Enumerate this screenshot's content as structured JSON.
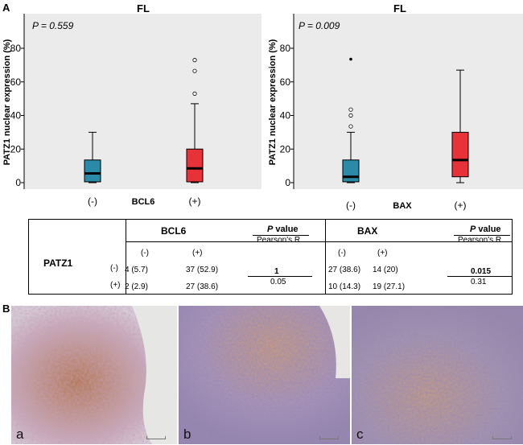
{
  "panel_a_label": "A",
  "panel_b_label": "B",
  "chart_data": [
    {
      "type": "boxplot",
      "title": "FL",
      "annotation": "P = 0.559",
      "ylabel": "PATZ1 nuclear expression (%)",
      "xlabel": "BCL6",
      "categories": [
        "(-)",
        "(+)"
      ],
      "yticks": [
        0,
        20,
        40,
        60,
        80
      ],
      "ylim": [
        0,
        84
      ],
      "boxes": [
        {
          "name": "(-)",
          "color": "#2a8aa8",
          "whisker_low": 0,
          "q1": 0.5,
          "median": 5.5,
          "q3": 13.5,
          "whisker_high": 30,
          "outliers": [],
          "outlier_style": "circle"
        },
        {
          "name": "(+)",
          "color": "#e8323a",
          "whisker_low": 0,
          "q1": 0.5,
          "median": 8.5,
          "q3": 20,
          "whisker_high": 47,
          "outliers": [
            53,
            66.5,
            73
          ],
          "outlier_style": "circle"
        }
      ]
    },
    {
      "type": "boxplot",
      "title": "FL",
      "annotation": "P = 0.009",
      "ylabel": "PATZ1 nuclear expression (%)",
      "xlabel": "BAX",
      "categories": [
        "(-)",
        "(+)"
      ],
      "yticks": [
        0,
        20,
        40,
        60,
        80
      ],
      "ylim": [
        0,
        84
      ],
      "boxes": [
        {
          "name": "(-)",
          "color": "#2a8aa8",
          "whisker_low": 0,
          "q1": 0.5,
          "median": 3.5,
          "q3": 13.5,
          "whisker_high": 30,
          "outliers": [
            33.5,
            40,
            43.5
          ],
          "outlier_style": "circle",
          "extremes": [
            73.5
          ]
        },
        {
          "name": "(+)",
          "color": "#e8323a",
          "whisker_low": 0,
          "q1": 3.5,
          "median": 13.5,
          "q3": 30,
          "whisker_high": 67,
          "outliers": [],
          "outlier_style": "circle"
        }
      ]
    }
  ],
  "table": {
    "row_header": "PATZ1",
    "row_neg": "(-)",
    "row_pos": "(+)",
    "bcl6": {
      "title": "BCL6",
      "neg": "(-)",
      "pos": "(+)",
      "pvalue_label_p": "P",
      "pvalue_label_rest": " value",
      "pearson_label": "Pearson's R",
      "neg_neg": "4 (5.7)",
      "neg_pos": "37 (52.9)",
      "pos_neg": "2 (2.9)",
      "pos_pos": "27 (38.6)",
      "pvalue": "1",
      "r": "0.05"
    },
    "bax": {
      "title": "BAX",
      "neg": "(-)",
      "pos": "(+)",
      "pvalue_label_p": "P",
      "pvalue_label_rest": " value",
      "pearson_label": "Pearson's R",
      "neg_neg": "27 (38.6)",
      "neg_pos": "14 (20)",
      "pos_neg": "10 (14.3)",
      "pos_pos": "19 (27.1)",
      "pvalue": "0.015",
      "r": "0.31"
    }
  },
  "images": [
    {
      "label": "a"
    },
    {
      "label": "b"
    },
    {
      "label": "c"
    }
  ]
}
